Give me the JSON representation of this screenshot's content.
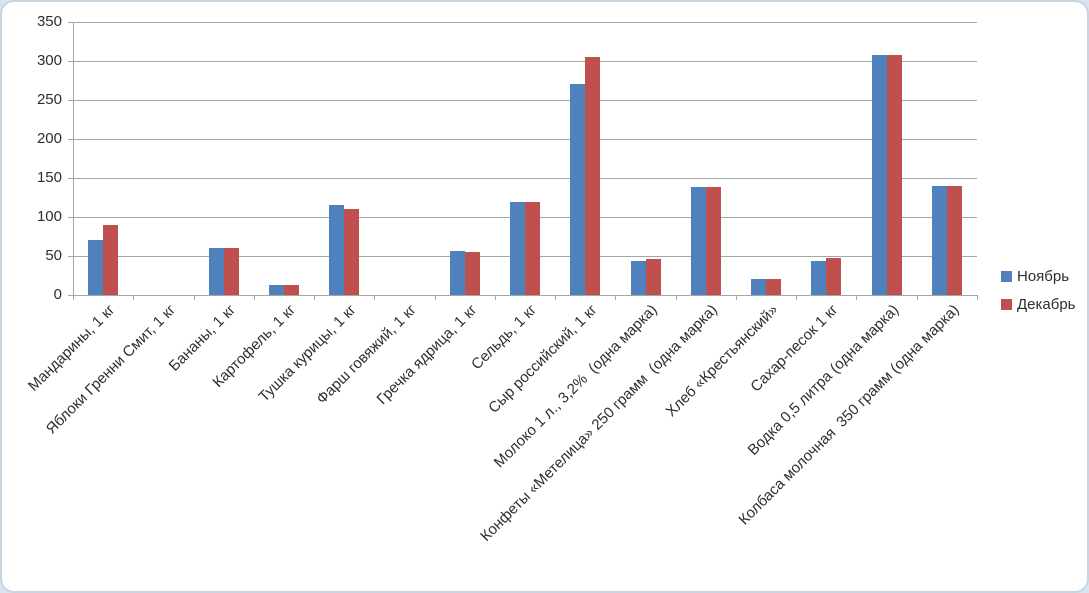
{
  "chart_data": {
    "type": "bar",
    "title": "",
    "xlabel": "",
    "ylabel": "",
    "categories": [
      "Мандарины, 1 кг",
      "Яблоки Гренни Смит, 1 кг",
      "Бананы, 1 кг",
      "Картофель, 1 кг",
      "Тушка курицы, 1 кг",
      "Фарш говяжий, 1 кг",
      "Гречка ядрица, 1 кг",
      "Сельдь, 1 кг",
      "Сыр российский, 1 кг",
      "Молоко 1 л., 3,2%  (одна марка)",
      "Конфеты «Метелица» 250 грамм  (одна марка)",
      "Хлеб «Крестьянский»",
      "Сахар-песок 1 кг",
      "Водка 0,5 литра (одна марка)",
      "Колбаса молочная  350 грамм (одна марка)"
    ],
    "series": [
      {
        "name": "Ноябрь",
        "color": "#4f81bd",
        "values": [
          70,
          0,
          60,
          13,
          115,
          0,
          56,
          119,
          270,
          44,
          139,
          20,
          44,
          308,
          140
        ]
      },
      {
        "name": "Декабрь",
        "color": "#c0504d",
        "values": [
          90,
          0,
          60,
          13,
          110,
          0,
          55,
          119,
          305,
          46,
          139,
          20,
          48,
          308,
          140
        ]
      }
    ],
    "yticks": [
      0,
      50,
      100,
      150,
      200,
      250,
      300,
      350
    ],
    "ylim": [
      0,
      350
    ],
    "grid": "horizontal-gridlines-on",
    "legend_position": "right"
  },
  "legend": {
    "items": [
      {
        "label": "Ноябрь",
        "color": "#4f81bd"
      },
      {
        "label": "Декабрь",
        "color": "#c0504d"
      }
    ]
  },
  "colors": {
    "series1": "#4f81bd",
    "series2": "#c0504d",
    "gridline": "#a6a6a6",
    "axis_text": "#2e2e2e",
    "frame_border": "#c7d5e2",
    "background": "#ffffff"
  }
}
